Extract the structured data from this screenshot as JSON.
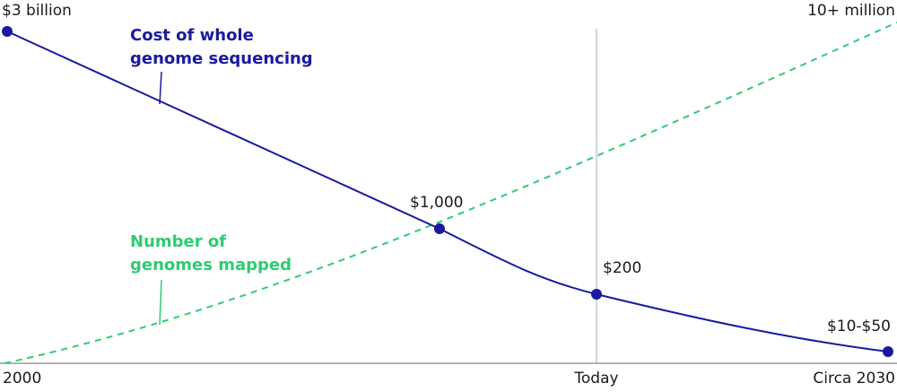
{
  "header": {
    "left_label": "$3 billion",
    "right_label": "10+ million"
  },
  "cost_curve": {
    "label_lines": [
      "Cost of whole",
      "genome sequencing"
    ],
    "points": [
      {
        "label": "$1,000"
      },
      {
        "label": "$200"
      },
      {
        "label": "$10-$50"
      }
    ]
  },
  "genomes_curve": {
    "label_lines": [
      "Number of",
      "genomes mapped"
    ]
  },
  "x_axis": {
    "labels": [
      "2000",
      "Today",
      "Circa 2030"
    ]
  }
}
